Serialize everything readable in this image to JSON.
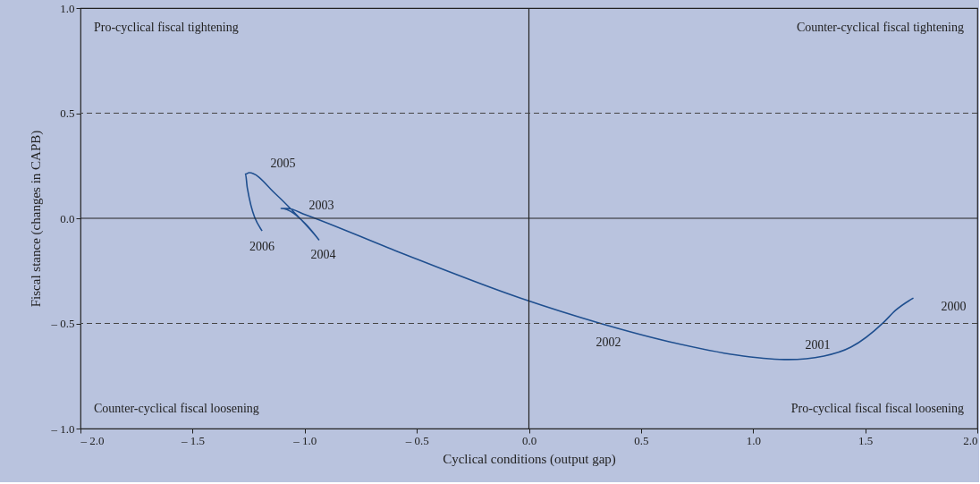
{
  "chart_data": {
    "type": "line",
    "xlabel": "Cyclical conditions (output gap)",
    "ylabel": "Fiscal stance (changes in CAPB)",
    "xlim": [
      -2.0,
      2.0
    ],
    "ylim": [
      -1.0,
      1.0
    ],
    "xticks": [
      {
        "value": -2.0,
        "label": "– 2.0"
      },
      {
        "value": -1.5,
        "label": "– 1.5"
      },
      {
        "value": -1.0,
        "label": "– 1.0"
      },
      {
        "value": -0.5,
        "label": "– 0.5"
      },
      {
        "value": 0.0,
        "label": "0.0"
      },
      {
        "value": 0.5,
        "label": "0.5"
      },
      {
        "value": 1.0,
        "label": "1.0"
      },
      {
        "value": 1.5,
        "label": "1.5"
      },
      {
        "value": 2.0,
        "label": "2.0"
      }
    ],
    "yticks": [
      {
        "value": -1.0,
        "label": "– 1.0"
      },
      {
        "value": -0.5,
        "label": "– 0.5"
      },
      {
        "value": 0.0,
        "label": "0.0"
      },
      {
        "value": 0.5,
        "label": "0.5"
      },
      {
        "value": 1.0,
        "label": "1.0"
      }
    ],
    "grid": false,
    "marker": "none",
    "line_style": "solid",
    "series": [
      {
        "color": "#1f4f8f",
        "x": [
          1.715,
          1.635,
          1.583,
          1.436,
          1.316,
          1.157,
          0.957,
          0.626,
          0.319,
          -0.04,
          -0.598,
          -0.997,
          -1.077,
          -1.105,
          -0.997,
          -0.937,
          -1.037,
          -1.129,
          -1.248,
          -1.264,
          -1.256,
          -1.19
        ],
        "values": [
          -0.379,
          -0.438,
          -0.494,
          -0.613,
          -0.655,
          -0.672,
          -0.655,
          -0.587,
          -0.5,
          -0.379,
          -0.153,
          0.017,
          0.047,
          0.047,
          -0.026,
          -0.102,
          0.017,
          0.115,
          0.217,
          0.21,
          0.145,
          -0.06
        ]
      }
    ],
    "ref_lines": [
      {
        "axis": "x",
        "value": 0.0,
        "color": "#222222",
        "line_style": "solid"
      },
      {
        "axis": "y",
        "value": 0.0,
        "color": "#222222",
        "line_style": "solid"
      },
      {
        "axis": "y",
        "value": 0.5,
        "color": "#444444",
        "line_style": "dashed"
      },
      {
        "axis": "y",
        "value": -0.5,
        "color": "#444444",
        "line_style": "dashed"
      }
    ],
    "annotations": [
      "Pro-cyclical fiscal tightening",
      "Counter-cyclical fiscal tightening",
      "Counter-cyclical fiscal loosening",
      "Pro-cyclical fiscal fiscal loosening",
      {
        "text": "2000",
        "x": 1.715,
        "y": -0.379
      },
      {
        "text": "2001",
        "x": 1.316,
        "y": -0.655
      },
      {
        "text": "2002",
        "x": 0.319,
        "y": -0.5
      },
      {
        "text": "2003",
        "x": -1.105,
        "y": 0.047
      },
      {
        "text": "2004",
        "x": -0.937,
        "y": -0.102
      },
      {
        "text": "2005",
        "x": -1.248,
        "y": 0.217
      },
      {
        "text": "2006",
        "x": -1.19,
        "y": -0.06
      }
    ]
  }
}
